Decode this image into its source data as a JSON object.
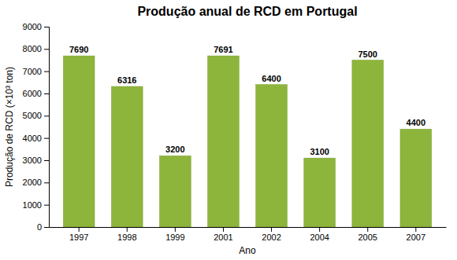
{
  "chart_data": {
    "type": "bar",
    "title": "Produção anual de RCD em Portugal",
    "xlabel": "Ano",
    "ylabel": "Produção de RCD (×10³ ton)",
    "categories": [
      "1997",
      "1998",
      "1999",
      "2001",
      "2002",
      "2004",
      "2005",
      "2007"
    ],
    "values": [
      7690,
      6316,
      3200,
      7691,
      6400,
      3100,
      7500,
      4400
    ],
    "color": "#8db53c",
    "ylim": [
      0,
      9000
    ],
    "yticks": [
      0,
      1000,
      2000,
      3000,
      4000,
      5000,
      6000,
      7000,
      8000,
      9000
    ],
    "grid": false,
    "data_labels": true
  }
}
